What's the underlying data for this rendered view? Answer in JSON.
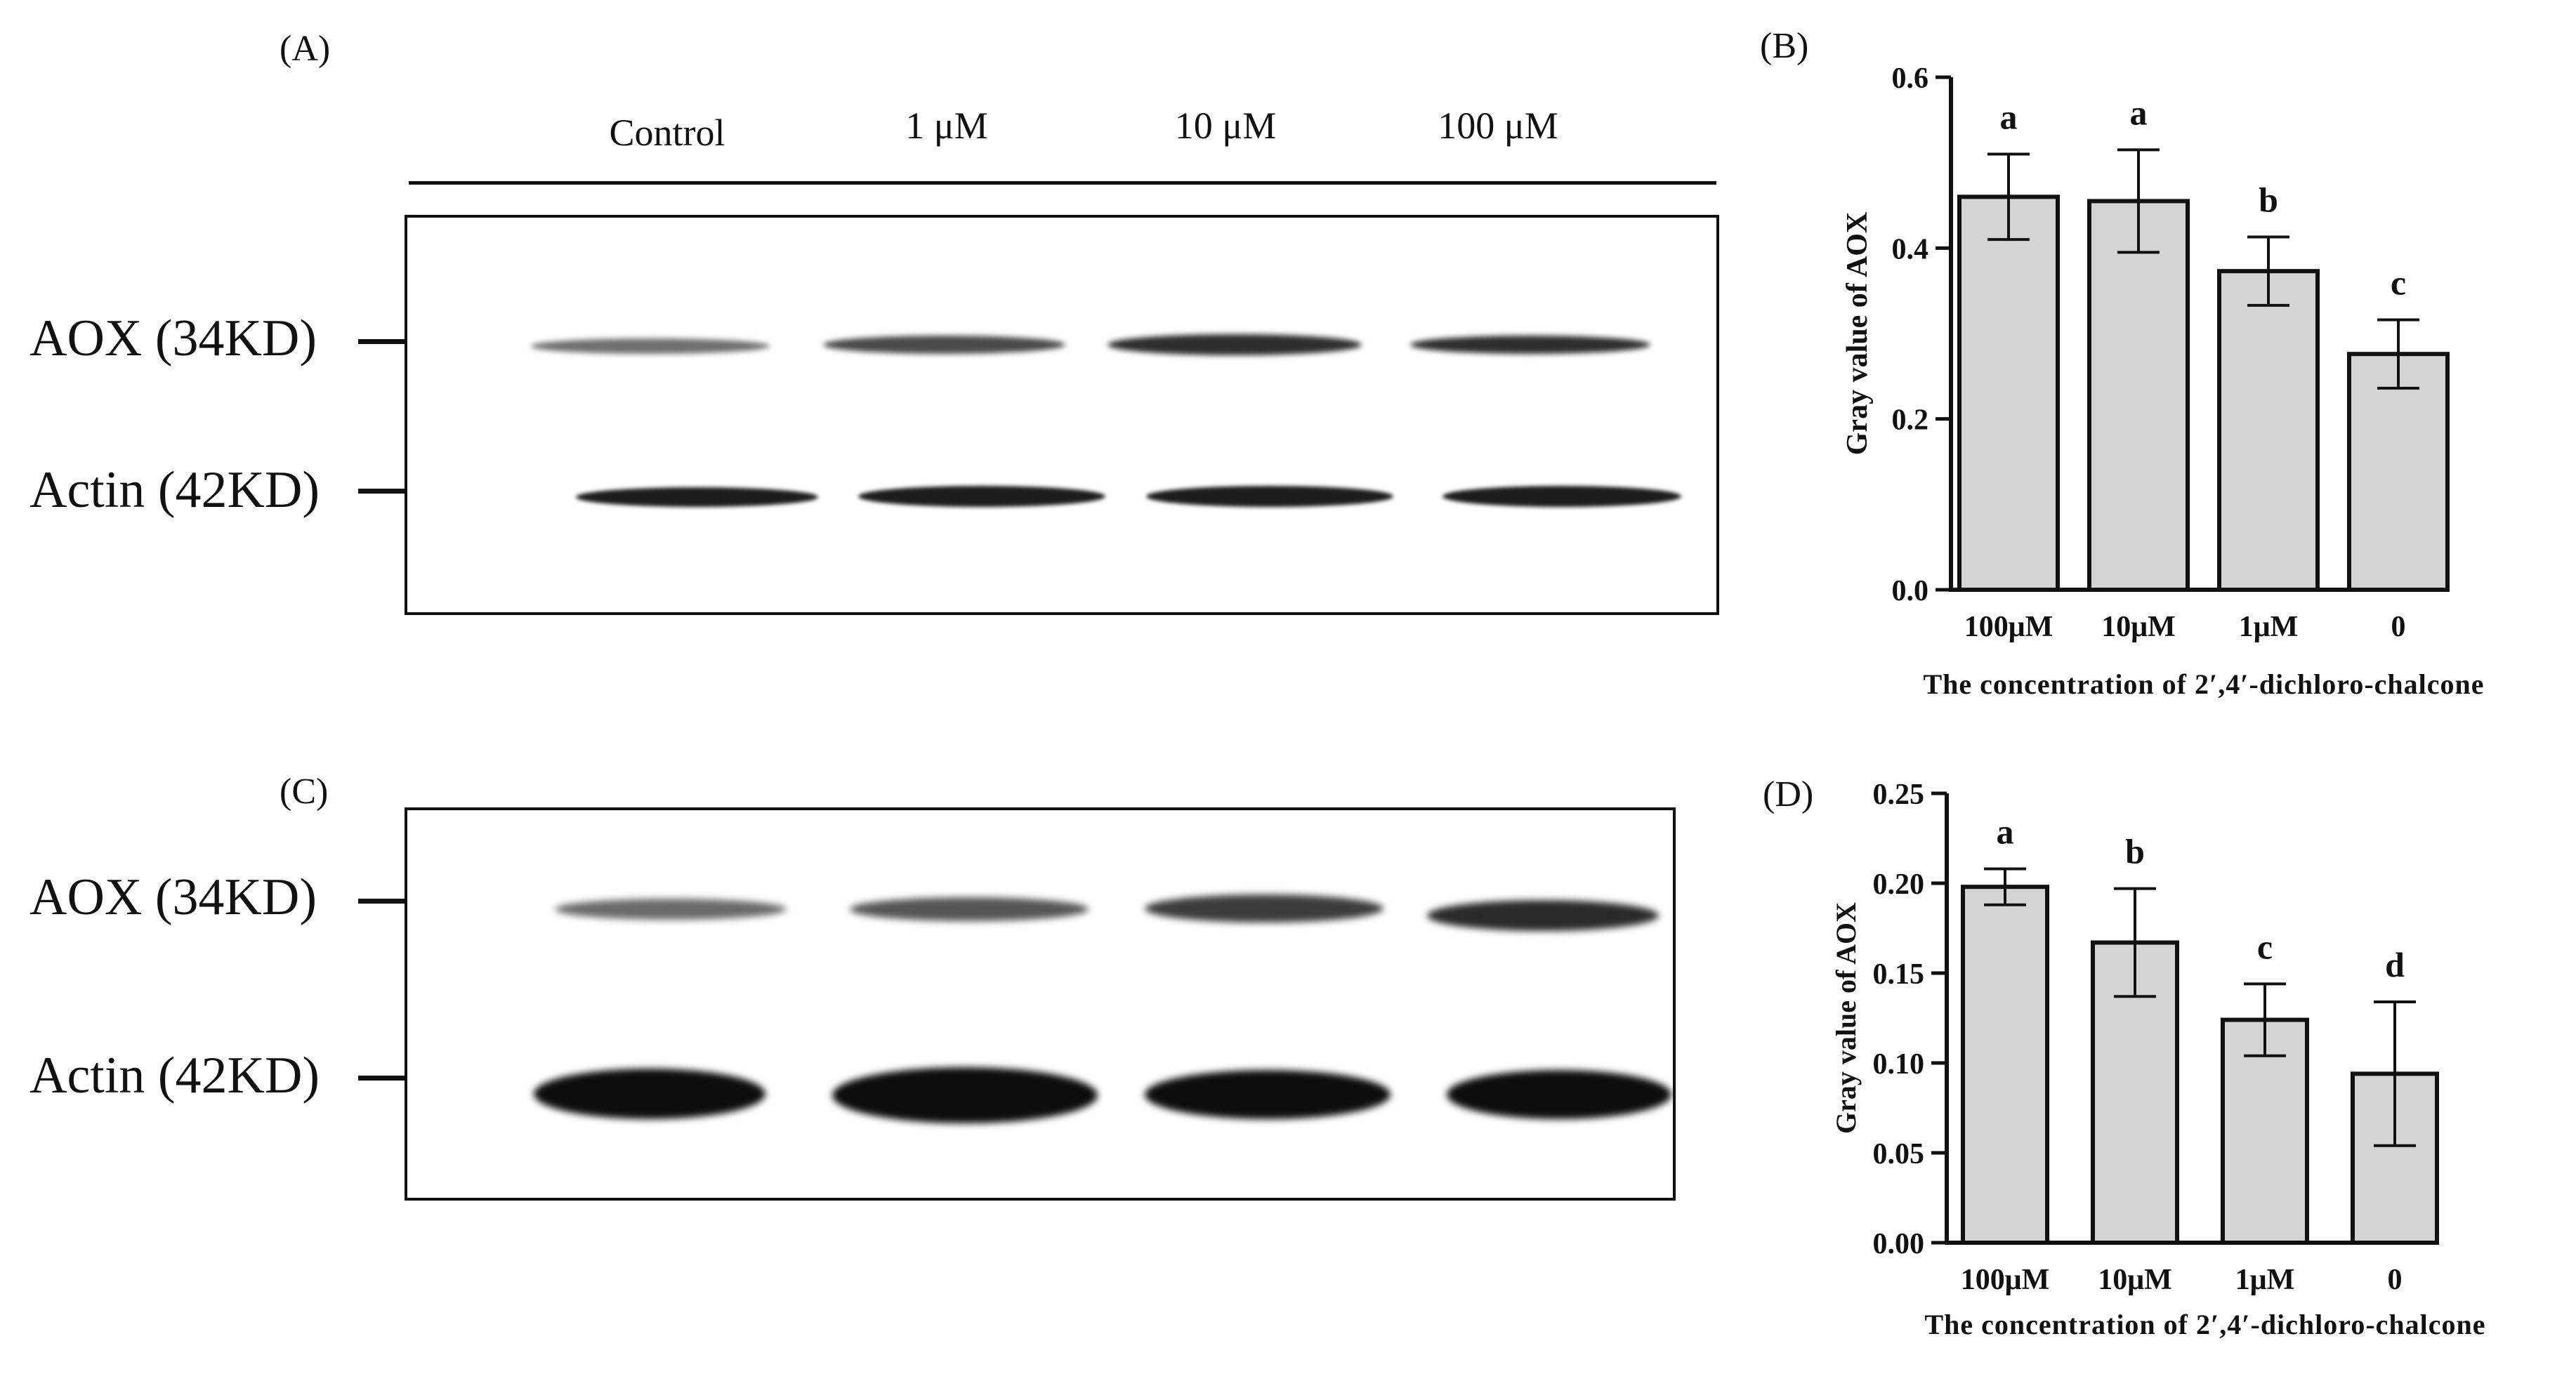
{
  "panels": {
    "a": "(A)",
    "b": "(B)",
    "c": "(C)",
    "d": "(D)"
  },
  "blot_a": {
    "lanes": [
      "Control",
      "1 μM",
      "10 μM",
      "100 μM"
    ],
    "rows": [
      "AOX (34KD)",
      "Actin (42KD)"
    ]
  },
  "blot_c": {
    "rows": [
      "AOX (34KD)",
      "Actin (42KD)"
    ]
  },
  "chart_data": [
    {
      "type": "bar",
      "panel": "(B)",
      "categories": [
        "100μM",
        "10μM",
        "1μM",
        "0"
      ],
      "values": [
        0.46,
        0.455,
        0.373,
        0.276
      ],
      "errors": [
        0.05,
        0.06,
        0.04,
        0.04
      ],
      "significance": [
        "a",
        "a",
        "b",
        "c"
      ],
      "xlabel": "The concentration of 2′,4′-dichloro-chalcone",
      "ylabel": "Gray value of AOX",
      "ylim": [
        0,
        0.6
      ],
      "yticks": [
        "0.0",
        "0.2",
        "0.4",
        "0.6"
      ],
      "yticks_values": [
        0,
        0.2,
        0.4,
        0.6
      ],
      "bar_color": "#d4d4d4"
    },
    {
      "type": "bar",
      "panel": "(D)",
      "categories": [
        "100μM",
        "10μM",
        "1μM",
        "0"
      ],
      "values": [
        0.198,
        0.167,
        0.124,
        0.094
      ],
      "errors": [
        0.01,
        0.03,
        0.02,
        0.04
      ],
      "significance": [
        "a",
        "b",
        "c",
        "d"
      ],
      "xlabel": "The concentration of 2′,4′-dichloro-chalcone",
      "ylabel": "Gray value of AOX",
      "ylim": [
        0,
        0.25
      ],
      "yticks": [
        "0.00",
        "0.05",
        "0.10",
        "0.15",
        "0.20",
        "0.25"
      ],
      "yticks_values": [
        0,
        0.05,
        0.1,
        0.15,
        0.2,
        0.25
      ],
      "bar_color": "#d4d4d4"
    }
  ]
}
